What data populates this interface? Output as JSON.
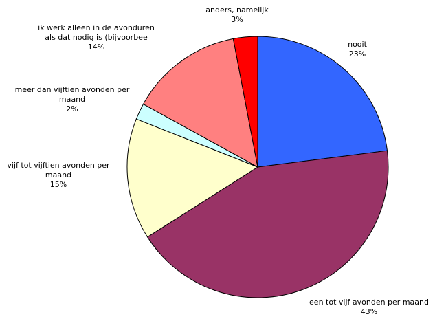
{
  "chart_data": {
    "type": "pie",
    "categories": [
      "nooit",
      "een tot vijf avonden per maand",
      "vijf tot vijftien avonden per maand",
      "meer dan vijftien avonden per maand",
      "ik werk alleen in de avonduren als dat nodig is (bijvoorbee",
      "anders, namelijk"
    ],
    "values": [
      23,
      43,
      15,
      2,
      14,
      3
    ],
    "value_labels": [
      "23%",
      "43%",
      "15%",
      "2%",
      "14%",
      "3%"
    ],
    "colors": [
      "#3366ff",
      "#993366",
      "#ffffcc",
      "#ccffff",
      "#ff8080",
      "#ff0000"
    ]
  }
}
